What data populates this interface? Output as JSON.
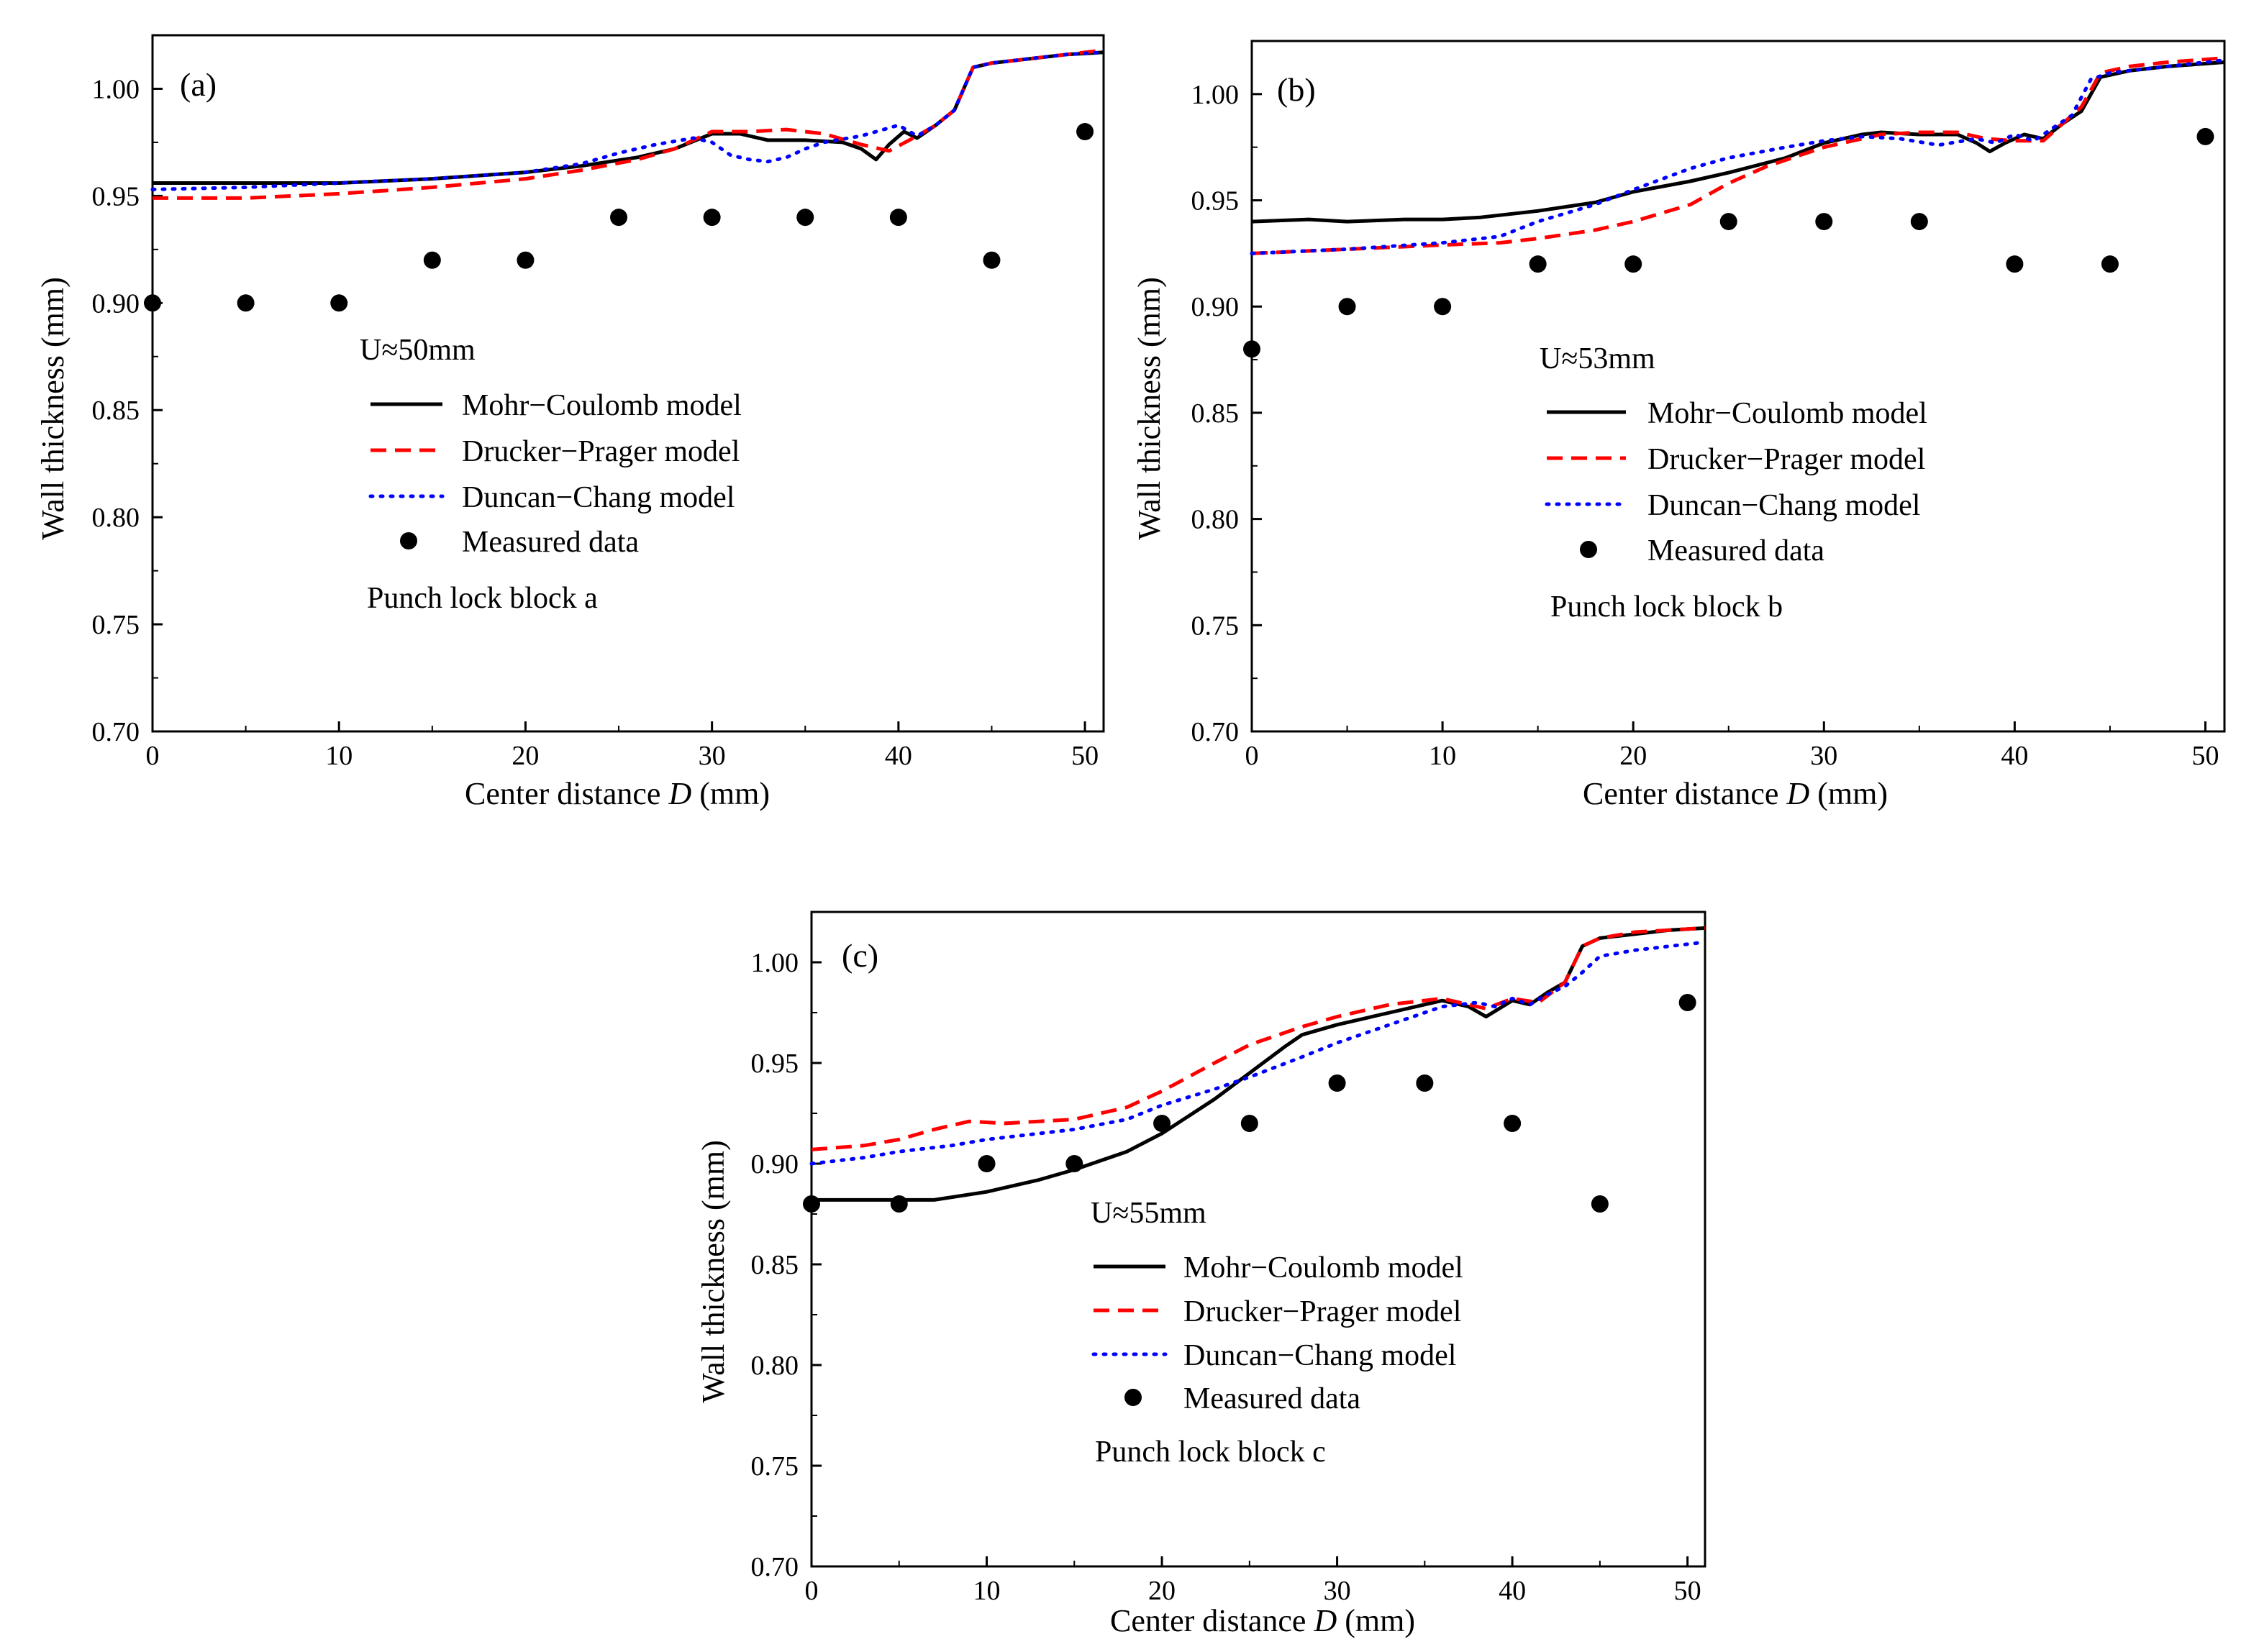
{
  "colors": {
    "mohr": "#000000",
    "drucker": "#ff0000",
    "duncan": "#0000ff",
    "measured": "#000000",
    "axis": "#000000"
  },
  "chart_data": [
    {
      "type": "line",
      "panel_label": "(a)",
      "xlabel_prefix": "Center distance ",
      "xlabel_var": "D",
      "xlabel_suffix": " (mm)",
      "ylabel": "Wall thickness (mm)",
      "xlim": [
        0,
        51
      ],
      "ylim": [
        0.7,
        1.025
      ],
      "xticks": [
        0,
        10,
        20,
        30,
        40,
        50
      ],
      "xtick_labels": [
        "0",
        "10",
        "20",
        "30",
        "40",
        "50"
      ],
      "yticks": [
        0.7,
        0.75,
        0.8,
        0.85,
        0.9,
        0.95,
        1.0
      ],
      "ytick_labels": [
        "0.70",
        "0.75",
        "0.80",
        "0.85",
        "0.90",
        "0.95",
        "1.00"
      ],
      "condition": "U≈50mm",
      "note": "Punch lock block a",
      "series": [
        {
          "name": "Mohr−Coulomb model",
          "style": "solid",
          "color": "#000000",
          "x": [
            0,
            5,
            10,
            15,
            20,
            23,
            26,
            28,
            30,
            31.5,
            33,
            35,
            37,
            38,
            38.8,
            39.5,
            40.3,
            41,
            42,
            43,
            44,
            45,
            47,
            49,
            51
          ],
          "y": [
            0.956,
            0.956,
            0.956,
            0.958,
            0.961,
            0.964,
            0.968,
            0.972,
            0.979,
            0.979,
            0.976,
            0.976,
            0.975,
            0.972,
            0.967,
            0.974,
            0.98,
            0.977,
            0.983,
            0.99,
            1.01,
            1.012,
            1.014,
            1.016,
            1.017
          ]
        },
        {
          "name": "Drucker−Prager model",
          "style": "dashed",
          "color": "#ff0000",
          "x": [
            0,
            5,
            10,
            15,
            20,
            23,
            26,
            28,
            30,
            32,
            34,
            36,
            38,
            39.5,
            41,
            42,
            43,
            44,
            45,
            47,
            49,
            51
          ],
          "y": [
            0.949,
            0.949,
            0.951,
            0.954,
            0.958,
            0.962,
            0.967,
            0.972,
            0.98,
            0.98,
            0.981,
            0.979,
            0.974,
            0.971,
            0.978,
            0.983,
            0.99,
            1.01,
            1.012,
            1.014,
            1.016,
            1.018
          ]
        },
        {
          "name": "Duncan−Chang model",
          "style": "dotted",
          "color": "#0000ff",
          "x": [
            0,
            5,
            10,
            15,
            20,
            23,
            25,
            27,
            29,
            30,
            31,
            32,
            33,
            34,
            35,
            36,
            38,
            40,
            41,
            42,
            43,
            44,
            45,
            47,
            49,
            51
          ],
          "y": [
            0.953,
            0.954,
            0.956,
            0.958,
            0.961,
            0.965,
            0.97,
            0.974,
            0.977,
            0.975,
            0.969,
            0.967,
            0.966,
            0.968,
            0.972,
            0.975,
            0.978,
            0.983,
            0.978,
            0.983,
            0.99,
            1.01,
            1.012,
            1.014,
            1.016,
            1.017
          ]
        },
        {
          "name": "Measured data",
          "style": "markers",
          "color": "#000000",
          "x": [
            0,
            5,
            10,
            15,
            20,
            25,
            30,
            35,
            40,
            45,
            50
          ],
          "y": [
            0.9,
            0.9,
            0.9,
            0.92,
            0.92,
            0.94,
            0.94,
            0.94,
            0.94,
            0.92,
            0.98
          ]
        }
      ]
    },
    {
      "type": "line",
      "panel_label": "(b)",
      "xlabel_prefix": "Center distance ",
      "xlabel_var": "D",
      "xlabel_suffix": " (mm)",
      "ylabel": "Wall thickness (mm)",
      "xlim": [
        0,
        51
      ],
      "ylim": [
        0.7,
        1.025
      ],
      "xticks": [
        0,
        10,
        20,
        30,
        40,
        50
      ],
      "xtick_labels": [
        "0",
        "10",
        "20",
        "30",
        "40",
        "50"
      ],
      "yticks": [
        0.7,
        0.75,
        0.8,
        0.85,
        0.9,
        0.95,
        1.0
      ],
      "ytick_labels": [
        "0.70",
        "0.75",
        "0.80",
        "0.85",
        "0.90",
        "0.95",
        "1.00"
      ],
      "condition": "U≈53mm",
      "note": "Punch lock block b",
      "series": [
        {
          "name": "Mohr−Coulomb model",
          "style": "solid",
          "color": "#000000",
          "x": [
            0,
            3,
            5,
            8,
            10,
            12,
            15,
            18,
            20,
            23,
            25,
            28,
            30,
            32,
            33,
            35,
            37,
            38,
            38.7,
            39.5,
            40.5,
            41.5,
            42.5,
            43.5,
            44.5,
            46,
            48,
            51
          ],
          "y": [
            0.94,
            0.941,
            0.94,
            0.941,
            0.941,
            0.942,
            0.945,
            0.949,
            0.954,
            0.959,
            0.963,
            0.97,
            0.977,
            0.981,
            0.982,
            0.981,
            0.981,
            0.977,
            0.973,
            0.977,
            0.981,
            0.979,
            0.986,
            0.992,
            1.008,
            1.011,
            1.013,
            1.015
          ]
        },
        {
          "name": "Drucker−Prager model",
          "style": "dashed",
          "color": "#ff0000",
          "x": [
            0,
            5,
            10,
            13,
            15,
            18,
            20,
            23,
            25,
            27,
            30,
            33,
            35,
            37,
            38.5,
            40,
            41.5,
            42.5,
            43.5,
            44.5,
            46,
            48,
            51
          ],
          "y": [
            0.925,
            0.927,
            0.929,
            0.93,
            0.932,
            0.936,
            0.94,
            0.948,
            0.958,
            0.966,
            0.975,
            0.981,
            0.982,
            0.982,
            0.979,
            0.978,
            0.978,
            0.986,
            0.994,
            1.01,
            1.013,
            1.015,
            1.017
          ]
        },
        {
          "name": "Duncan−Chang model",
          "style": "dotted",
          "color": "#0000ff",
          "x": [
            0,
            5,
            10,
            13,
            15,
            18,
            20,
            23,
            25,
            28,
            30,
            32,
            34,
            36,
            38,
            39,
            40,
            41,
            42,
            43,
            44,
            45,
            47,
            49,
            51
          ],
          "y": [
            0.925,
            0.927,
            0.93,
            0.933,
            0.94,
            0.948,
            0.955,
            0.965,
            0.97,
            0.975,
            0.978,
            0.98,
            0.979,
            0.976,
            0.979,
            0.977,
            0.981,
            0.978,
            0.984,
            0.99,
            1.007,
            1.01,
            1.012,
            1.014,
            1.016
          ]
        },
        {
          "name": "Measured data",
          "style": "markers",
          "color": "#000000",
          "x": [
            0,
            5,
            10,
            15,
            20,
            25,
            30,
            35,
            40,
            45,
            50
          ],
          "y": [
            0.88,
            0.9,
            0.9,
            0.92,
            0.92,
            0.94,
            0.94,
            0.94,
            0.92,
            0.92,
            0.98
          ]
        }
      ]
    },
    {
      "type": "line",
      "panel_label": "(c)",
      "xlabel_prefix": "Center distance ",
      "xlabel_var": "D",
      "xlabel_suffix": " (mm)",
      "ylabel": "Wall thickness (mm)",
      "xlim": [
        0,
        51
      ],
      "ylim": [
        0.7,
        1.025
      ],
      "xticks": [
        0,
        10,
        20,
        30,
        40,
        50
      ],
      "xtick_labels": [
        "0",
        "10",
        "20",
        "30",
        "40",
        "50"
      ],
      "yticks": [
        0.7,
        0.75,
        0.8,
        0.85,
        0.9,
        0.95,
        1.0
      ],
      "ytick_labels": [
        "0.70",
        "0.75",
        "0.80",
        "0.85",
        "0.90",
        "0.95",
        "1.00"
      ],
      "condition": "U≈55mm",
      "note": "Punch lock block c",
      "series": [
        {
          "name": "Mohr−Coulomb model",
          "style": "solid",
          "color": "#000000",
          "x": [
            0,
            3,
            5,
            7,
            10,
            13,
            15,
            18,
            20,
            23,
            25,
            27,
            28,
            30,
            33,
            36,
            37.5,
            38.5,
            40,
            41,
            42,
            43,
            44,
            45,
            47,
            49,
            51
          ],
          "y": [
            0.882,
            0.882,
            0.882,
            0.882,
            0.886,
            0.892,
            0.897,
            0.906,
            0.915,
            0.932,
            0.945,
            0.958,
            0.964,
            0.969,
            0.975,
            0.981,
            0.978,
            0.973,
            0.981,
            0.979,
            0.985,
            0.99,
            1.008,
            1.012,
            1.014,
            1.016,
            1.017
          ]
        },
        {
          "name": "Drucker−Prager model",
          "style": "dashed",
          "color": "#ff0000",
          "x": [
            0,
            3,
            5,
            7,
            9,
            11,
            13,
            15,
            18,
            20,
            23,
            25,
            28,
            30,
            33,
            36,
            38.5,
            40,
            41.5,
            43,
            44,
            45,
            47,
            49,
            51
          ],
          "y": [
            0.907,
            0.909,
            0.912,
            0.917,
            0.921,
            0.92,
            0.921,
            0.922,
            0.928,
            0.936,
            0.95,
            0.959,
            0.968,
            0.973,
            0.979,
            0.982,
            0.977,
            0.982,
            0.98,
            0.99,
            1.008,
            1.012,
            1.015,
            1.016,
            1.017
          ]
        },
        {
          "name": "Duncan−Chang model",
          "style": "dotted",
          "color": "#0000ff",
          "x": [
            0,
            3,
            5,
            8,
            10,
            13,
            15,
            18,
            20,
            23,
            25,
            28,
            30,
            33,
            36,
            38,
            39,
            40,
            41,
            42,
            43,
            44,
            45,
            47,
            49,
            51
          ],
          "y": [
            0.9,
            0.903,
            0.906,
            0.909,
            0.912,
            0.915,
            0.917,
            0.922,
            0.929,
            0.937,
            0.943,
            0.953,
            0.96,
            0.969,
            0.978,
            0.98,
            0.978,
            0.982,
            0.979,
            0.984,
            0.988,
            0.995,
            1.003,
            1.006,
            1.008,
            1.01
          ]
        },
        {
          "name": "Measured data",
          "style": "markers",
          "color": "#000000",
          "x": [
            0,
            5,
            10,
            15,
            20,
            25,
            30,
            35,
            40,
            45,
            50
          ],
          "y": [
            0.88,
            0.88,
            0.9,
            0.9,
            0.92,
            0.92,
            0.94,
            0.94,
            0.92,
            0.88,
            0.98
          ]
        }
      ]
    }
  ]
}
